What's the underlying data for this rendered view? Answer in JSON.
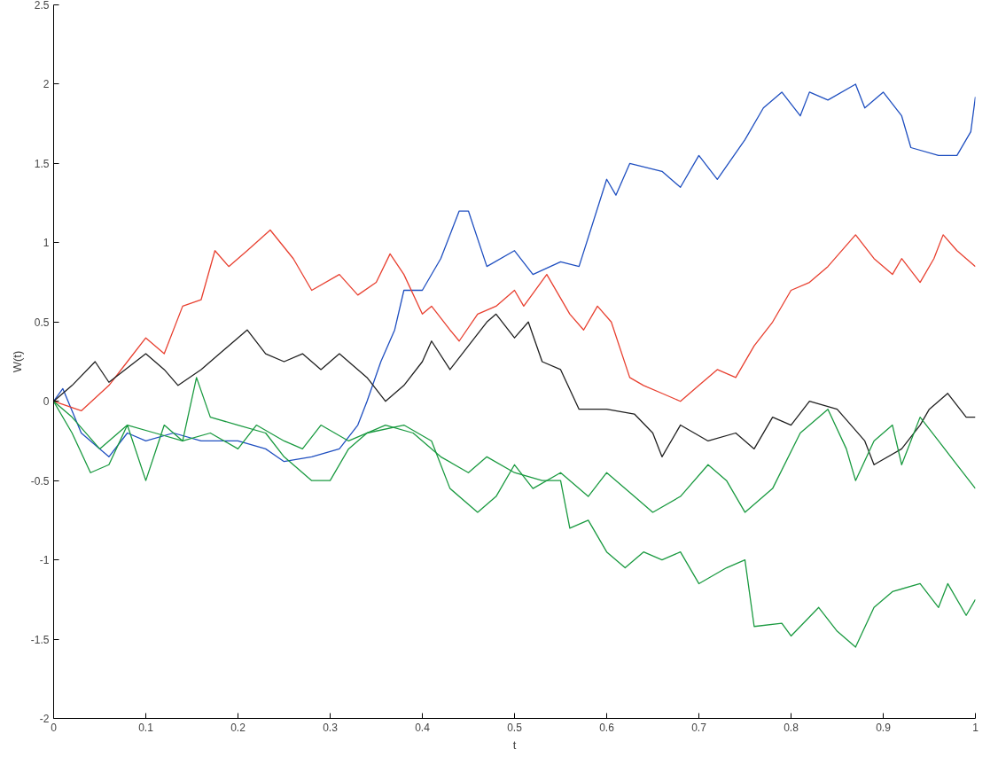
{
  "chart_data": {
    "type": "line",
    "xlabel": "t",
    "ylabel": "W(t)",
    "xlim": [
      0,
      1
    ],
    "ylim": [
      -2,
      2.5
    ],
    "xticks": [
      0,
      0.1,
      0.2,
      0.3,
      0.4,
      0.5,
      0.6,
      0.7,
      0.8,
      0.9,
      1
    ],
    "yticks": [
      -2,
      -1.5,
      -1,
      -0.5,
      0,
      0.5,
      1,
      1.5,
      2,
      2.5
    ],
    "grid": false,
    "marker": "none",
    "line_style": "solid",
    "series": [
      {
        "color": "#1f4fc0",
        "x": [
          0,
          0.01,
          0.03,
          0.06,
          0.08,
          0.1,
          0.13,
          0.16,
          0.2,
          0.23,
          0.25,
          0.28,
          0.31,
          0.33,
          0.34,
          0.355,
          0.37,
          0.38,
          0.4,
          0.42,
          0.44,
          0.45,
          0.47,
          0.5,
          0.52,
          0.55,
          0.57,
          0.6,
          0.61,
          0.625,
          0.66,
          0.68,
          0.7,
          0.72,
          0.75,
          0.77,
          0.79,
          0.81,
          0.82,
          0.84,
          0.87,
          0.88,
          0.9,
          0.92,
          0.93,
          0.96,
          0.98,
          0.995,
          1
        ],
        "values": [
          0,
          0.08,
          -0.2,
          -0.35,
          -0.2,
          -0.25,
          -0.2,
          -0.25,
          -0.25,
          -0.3,
          -0.38,
          -0.35,
          -0.3,
          -0.15,
          0,
          0.25,
          0.45,
          0.7,
          0.7,
          0.9,
          1.2,
          1.2,
          0.85,
          0.95,
          0.8,
          0.88,
          0.85,
          1.4,
          1.3,
          1.5,
          1.45,
          1.35,
          1.55,
          1.4,
          1.65,
          1.85,
          1.95,
          1.8,
          1.95,
          1.9,
          2.0,
          1.85,
          1.95,
          1.8,
          1.6,
          1.55,
          1.55,
          1.7,
          1.92
        ]
      },
      {
        "color": "#e84030",
        "x": [
          0,
          0.03,
          0.06,
          0.08,
          0.1,
          0.12,
          0.14,
          0.16,
          0.175,
          0.19,
          0.21,
          0.235,
          0.26,
          0.28,
          0.31,
          0.33,
          0.35,
          0.365,
          0.38,
          0.4,
          0.41,
          0.43,
          0.44,
          0.46,
          0.48,
          0.5,
          0.51,
          0.535,
          0.56,
          0.575,
          0.59,
          0.605,
          0.625,
          0.64,
          0.66,
          0.68,
          0.7,
          0.72,
          0.74,
          0.76,
          0.78,
          0.8,
          0.82,
          0.84,
          0.87,
          0.89,
          0.91,
          0.92,
          0.94,
          0.955,
          0.965,
          0.98,
          1
        ],
        "values": [
          0,
          -0.06,
          0.1,
          0.25,
          0.4,
          0.3,
          0.6,
          0.64,
          0.95,
          0.85,
          0.95,
          1.08,
          0.9,
          0.7,
          0.8,
          0.67,
          0.75,
          0.93,
          0.8,
          0.55,
          0.6,
          0.45,
          0.38,
          0.55,
          0.6,
          0.7,
          0.6,
          0.8,
          0.55,
          0.45,
          0.6,
          0.5,
          0.15,
          0.1,
          0.05,
          0.0,
          0.1,
          0.2,
          0.15,
          0.35,
          0.5,
          0.7,
          0.75,
          0.85,
          1.05,
          0.9,
          0.8,
          0.9,
          0.75,
          0.9,
          1.05,
          0.95,
          0.85
        ]
      },
      {
        "color": "#202020",
        "x": [
          0,
          0.02,
          0.045,
          0.06,
          0.1,
          0.12,
          0.135,
          0.16,
          0.18,
          0.21,
          0.23,
          0.25,
          0.27,
          0.29,
          0.31,
          0.34,
          0.36,
          0.38,
          0.4,
          0.41,
          0.43,
          0.45,
          0.47,
          0.48,
          0.5,
          0.515,
          0.53,
          0.55,
          0.57,
          0.6,
          0.63,
          0.65,
          0.66,
          0.68,
          0.71,
          0.74,
          0.76,
          0.78,
          0.8,
          0.82,
          0.85,
          0.88,
          0.89,
          0.92,
          0.94,
          0.95,
          0.97,
          0.99,
          1
        ],
        "values": [
          0,
          0.1,
          0.25,
          0.12,
          0.3,
          0.2,
          0.1,
          0.2,
          0.3,
          0.45,
          0.3,
          0.25,
          0.3,
          0.2,
          0.3,
          0.15,
          0.0,
          0.1,
          0.25,
          0.38,
          0.2,
          0.35,
          0.5,
          0.55,
          0.4,
          0.5,
          0.25,
          0.2,
          -0.05,
          -0.05,
          -0.08,
          -0.2,
          -0.35,
          -0.15,
          -0.25,
          -0.2,
          -0.3,
          -0.1,
          -0.15,
          0,
          -0.05,
          -0.25,
          -0.4,
          -0.3,
          -0.15,
          -0.05,
          0.05,
          -0.1,
          -0.1
        ]
      },
      {
        "color": "#1a9a40",
        "x": [
          0,
          0.02,
          0.04,
          0.06,
          0.08,
          0.1,
          0.12,
          0.14,
          0.155,
          0.17,
          0.2,
          0.23,
          0.25,
          0.28,
          0.3,
          0.32,
          0.34,
          0.38,
          0.41,
          0.43,
          0.46,
          0.48,
          0.5,
          0.52,
          0.55,
          0.58,
          0.6,
          0.63,
          0.65,
          0.68,
          0.71,
          0.73,
          0.75,
          0.78,
          0.81,
          0.84,
          0.86,
          0.87,
          0.89,
          0.91,
          0.92,
          0.94,
          0.96,
          0.98,
          1
        ],
        "values": [
          0,
          -0.2,
          -0.45,
          -0.4,
          -0.15,
          -0.5,
          -0.15,
          -0.25,
          0.15,
          -0.1,
          -0.15,
          -0.2,
          -0.35,
          -0.5,
          -0.5,
          -0.3,
          -0.2,
          -0.15,
          -0.25,
          -0.55,
          -0.7,
          -0.6,
          -0.4,
          -0.55,
          -0.45,
          -0.6,
          -0.45,
          -0.6,
          -0.7,
          -0.6,
          -0.4,
          -0.5,
          -0.7,
          -0.55,
          -0.2,
          -0.05,
          -0.3,
          -0.5,
          -0.25,
          -0.15,
          -0.4,
          -0.1,
          -0.25,
          -0.4,
          -0.55
        ]
      },
      {
        "color": "#1a9a40",
        "x": [
          0,
          0.02,
          0.05,
          0.08,
          0.11,
          0.14,
          0.17,
          0.2,
          0.22,
          0.25,
          0.27,
          0.29,
          0.32,
          0.36,
          0.39,
          0.42,
          0.45,
          0.47,
          0.5,
          0.53,
          0.55,
          0.56,
          0.58,
          0.6,
          0.62,
          0.64,
          0.66,
          0.68,
          0.7,
          0.73,
          0.75,
          0.76,
          0.79,
          0.8,
          0.83,
          0.85,
          0.87,
          0.89,
          0.91,
          0.94,
          0.96,
          0.97,
          0.99,
          1
        ],
        "values": [
          0,
          -0.1,
          -0.3,
          -0.15,
          -0.2,
          -0.25,
          -0.2,
          -0.3,
          -0.15,
          -0.25,
          -0.3,
          -0.15,
          -0.25,
          -0.15,
          -0.2,
          -0.35,
          -0.45,
          -0.35,
          -0.45,
          -0.5,
          -0.5,
          -0.8,
          -0.75,
          -0.95,
          -1.05,
          -0.95,
          -1.0,
          -0.95,
          -1.15,
          -1.05,
          -1.0,
          -1.42,
          -1.4,
          -1.48,
          -1.3,
          -1.45,
          -1.55,
          -1.3,
          -1.2,
          -1.15,
          -1.3,
          -1.15,
          -1.35,
          -1.25
        ]
      }
    ]
  }
}
